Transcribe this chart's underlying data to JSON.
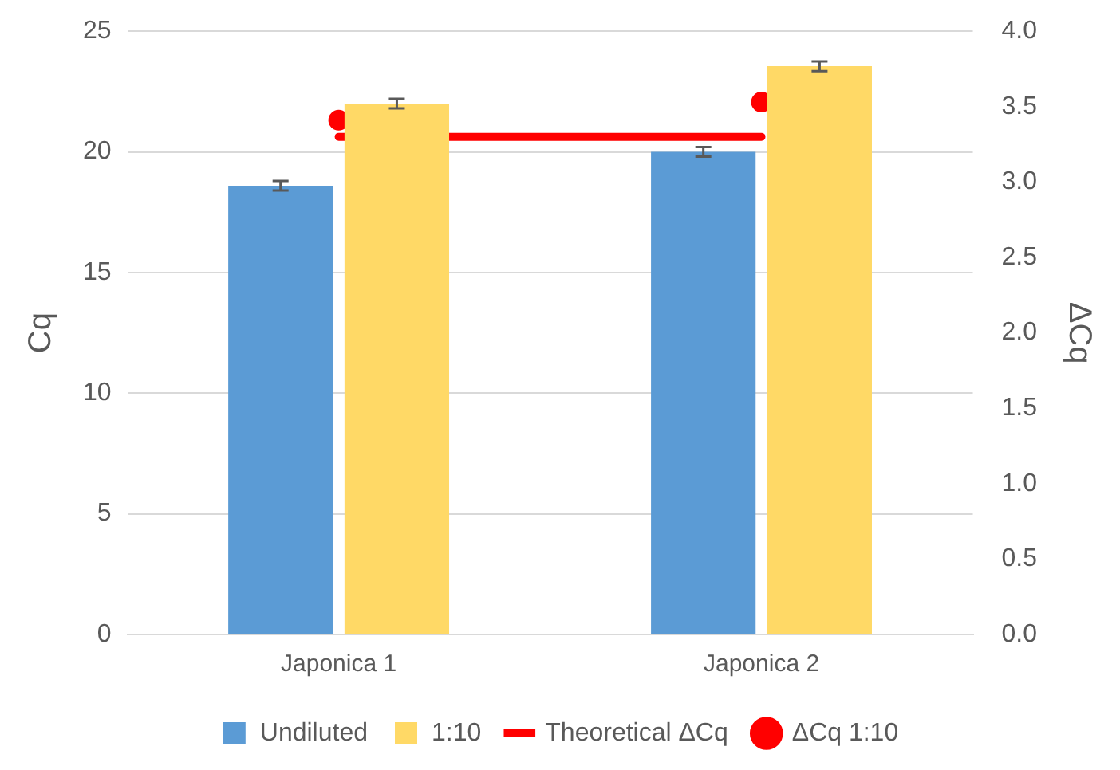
{
  "chart_data": {
    "type": "bar",
    "categories": [
      "Japonica 1",
      "Japonica 2"
    ],
    "ylabel": "Cq",
    "y2label": "ΔCq",
    "ylim": [
      0,
      25
    ],
    "yticks": [
      0,
      5,
      10,
      15,
      20,
      25
    ],
    "y2lim": [
      0,
      4
    ],
    "y2ticks": [
      {
        "value": 0,
        "label": "0.0"
      },
      {
        "value": 0.5,
        "label": "0.5"
      },
      {
        "value": 1,
        "label": "1.0"
      },
      {
        "value": 1.5,
        "label": "1.5"
      },
      {
        "value": 2,
        "label": "2.0"
      },
      {
        "value": 2.5,
        "label": "2.5"
      },
      {
        "value": 3,
        "label": "3.0"
      },
      {
        "value": 3.5,
        "label": "3.5"
      },
      {
        "value": 4,
        "label": "4.0"
      }
    ],
    "grid": "y",
    "legend": "bottom",
    "series": [
      {
        "name": "Undiluted",
        "color": "#5b9bd5",
        "values": [
          18.6,
          20.0
        ],
        "errors": [
          0.2,
          0.2
        ]
      },
      {
        "name": "1:10",
        "color": "#ffd966",
        "values": [
          22.0,
          23.55
        ],
        "errors": [
          0.2,
          0.2
        ]
      },
      {
        "name": "Theoretical ΔCq",
        "type": "line",
        "axis": "y2",
        "color": "#ff0000",
        "marker": "none",
        "values": [
          3.3,
          3.3
        ]
      },
      {
        "name": "ΔCq 1:10",
        "type": "scatter",
        "axis": "y2",
        "color": "#ff0000",
        "marker": "circle",
        "values": [
          3.41,
          3.53
        ]
      }
    ]
  }
}
